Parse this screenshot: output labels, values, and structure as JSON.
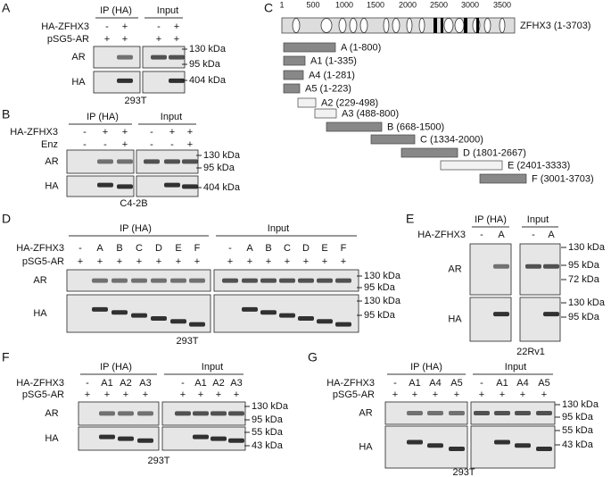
{
  "panels": [
    {
      "label": "A",
      "headers": [
        "IP (HA)",
        "Input"
      ],
      "rows": [
        {
          "name": "HA-ZFHX3",
          "lanes": [
            "-",
            "+",
            "-",
            "+"
          ]
        },
        {
          "name": "pSG5-AR",
          "lanes": [
            "+",
            "+",
            "+",
            "+"
          ]
        }
      ],
      "blots": [
        "AR",
        "HA"
      ],
      "markers": [
        "130 kDa",
        "95 kDa",
        "404 kDa"
      ],
      "cell_line": "293T"
    },
    {
      "label": "B",
      "headers": [
        "IP (HA)",
        "Input"
      ],
      "rows": [
        {
          "name": "HA-ZFHX3",
          "lanes": [
            "-",
            "+",
            "+",
            "-",
            "+",
            "+"
          ]
        },
        {
          "name": "Enz",
          "lanes": [
            "-",
            "-",
            "+",
            "-",
            "-",
            "+"
          ]
        }
      ],
      "blots": [
        "AR",
        "HA"
      ],
      "markers": [
        "130 kDa",
        "95 kDa",
        "404 kDa"
      ],
      "cell_line": "C4-2B"
    },
    {
      "label": "D",
      "headers": [
        "IP (HA)",
        "Input"
      ],
      "rows": [
        {
          "name": "HA-ZFHX3",
          "lanes": [
            "-",
            "A",
            "B",
            "C",
            "D",
            "E",
            "F",
            "-",
            "A",
            "B",
            "C",
            "D",
            "E",
            "F"
          ]
        },
        {
          "name": "pSG5-AR",
          "lanes": [
            "+",
            "+",
            "+",
            "+",
            "+",
            "+",
            "+",
            "+",
            "+",
            "+",
            "+",
            "+",
            "+",
            "+"
          ]
        }
      ],
      "blots": [
        "AR",
        "HA"
      ],
      "markers": [
        "130 kDa",
        "95 kDa",
        "130 kDa",
        "95 kDa"
      ],
      "cell_line": "293T"
    },
    {
      "label": "E",
      "headers": [
        "IP (HA)",
        "Input"
      ],
      "rows": [
        {
          "name": "HA-ZFHX3",
          "lanes": [
            "-",
            "A",
            "-",
            "A"
          ]
        }
      ],
      "blots": [
        "AR",
        "HA"
      ],
      "markers": [
        "130 kDa",
        "95 kDa",
        "72 kDa",
        "130 kDa",
        "95 kDa"
      ],
      "cell_line": "22Rv1"
    },
    {
      "label": "F",
      "headers": [
        "IP (HA)",
        "Input"
      ],
      "rows": [
        {
          "name": "HA-ZFHX3",
          "lanes": [
            "-",
            "A1",
            "A2",
            "A3",
            "-",
            "A1",
            "A2",
            "A3"
          ]
        },
        {
          "name": "pSG5-AR",
          "lanes": [
            "+",
            "+",
            "+",
            "+",
            "+",
            "+",
            "+",
            "+"
          ]
        }
      ],
      "blots": [
        "AR",
        "HA"
      ],
      "markers": [
        "130 kDa",
        "95 kDa",
        "55 kDa",
        "43 kDa"
      ],
      "cell_line": "293T"
    },
    {
      "label": "G",
      "headers": [
        "IP (HA)",
        "Input"
      ],
      "rows": [
        {
          "name": "HA-ZFHX3",
          "lanes": [
            "-",
            "A1",
            "A4",
            "A5",
            "-",
            "A1",
            "A4",
            "A5"
          ]
        },
        {
          "name": "pSG5-AR",
          "lanes": [
            "+",
            "+",
            "+",
            "+",
            "+",
            "+",
            "+",
            "+"
          ]
        }
      ],
      "blots": [
        "AR",
        "HA"
      ],
      "markers": [
        "130 kDa",
        "95 kDa",
        "55 kDa",
        "43 kDa"
      ],
      "cell_line": "293T"
    }
  ],
  "schematic": {
    "label": "C",
    "ruler": [
      1,
      500,
      1000,
      1500,
      2000,
      2500,
      3000,
      3500
    ],
    "protein": "ZFHX3 (1-3703)",
    "fragments": [
      "A (1-800)",
      "A1 (1-335)",
      "A4 (1-281)",
      "A5 (1-223)",
      "A2 (229-498)",
      "A3 (488-800)",
      "B (668-1500)",
      "C (1334-2000)",
      "D (1801-2667)",
      "E (2401-3333)",
      "F (3001-3703)"
    ]
  }
}
